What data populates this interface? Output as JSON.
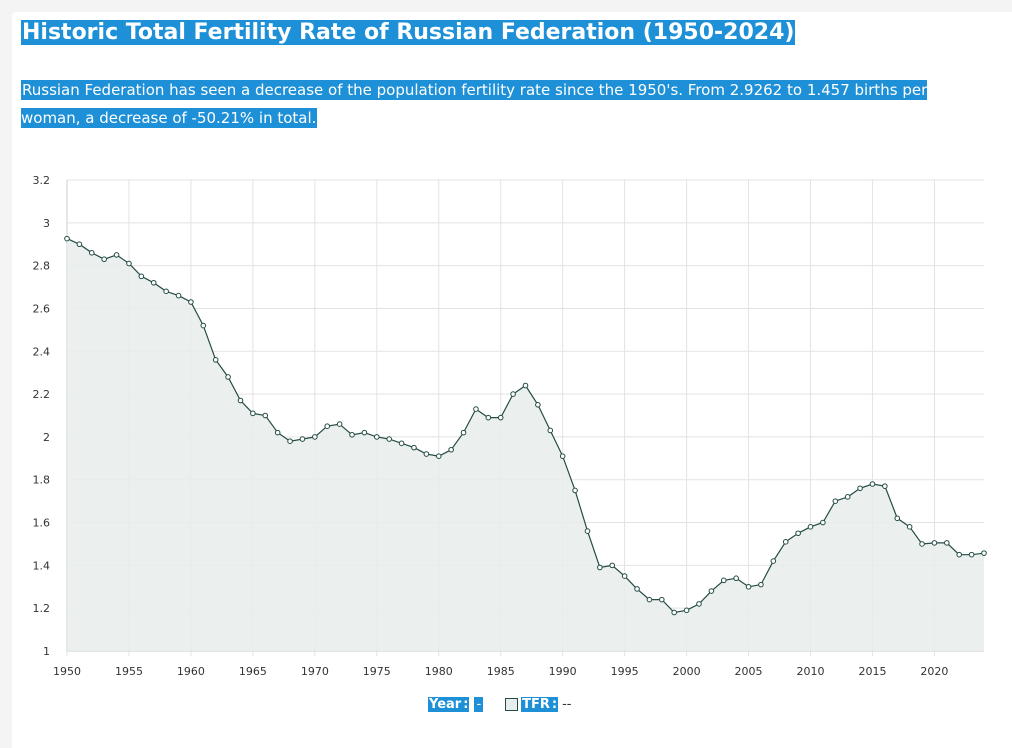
{
  "header": {
    "title": "Historic Total Fertility Rate of Russian Federation (1950-2024)",
    "description": "Russian Federation has seen a decrease of the population fertility rate since the 1950's. From 2.9262 to 1.457 births per woman, a decrease of -50.21% in total."
  },
  "legend": {
    "year_label": "Year",
    "year_sep": ":",
    "year_value": "-",
    "tfr_label": "TFR",
    "tfr_sep": ":",
    "tfr_value": "--"
  },
  "chart_data": {
    "type": "area",
    "title": "Historic Total Fertility Rate of Russian Federation (1950-2024)",
    "xlabel": "",
    "ylabel": "",
    "xlim": [
      1950,
      2024
    ],
    "ylim": [
      1,
      3.2
    ],
    "x_ticks": [
      1950,
      1955,
      1960,
      1965,
      1970,
      1975,
      1980,
      1985,
      1990,
      1995,
      2000,
      2005,
      2010,
      2015,
      2020
    ],
    "y_ticks": [
      1,
      1.2,
      1.4,
      1.6,
      1.8,
      2,
      2.2,
      2.4,
      2.6,
      2.8,
      3,
      3.2
    ],
    "grid": true,
    "line_color": "#244b45",
    "fill_color": "#e7edec",
    "series": [
      {
        "name": "TFR",
        "x": [
          1950,
          1951,
          1952,
          1953,
          1954,
          1955,
          1956,
          1957,
          1958,
          1959,
          1960,
          1961,
          1962,
          1963,
          1964,
          1965,
          1966,
          1967,
          1968,
          1969,
          1970,
          1971,
          1972,
          1973,
          1974,
          1975,
          1976,
          1977,
          1978,
          1979,
          1980,
          1981,
          1982,
          1983,
          1984,
          1985,
          1986,
          1987,
          1988,
          1989,
          1990,
          1991,
          1992,
          1993,
          1994,
          1995,
          1996,
          1997,
          1998,
          1999,
          2000,
          2001,
          2002,
          2003,
          2004,
          2005,
          2006,
          2007,
          2008,
          2009,
          2010,
          2011,
          2012,
          2013,
          2014,
          2015,
          2016,
          2017,
          2018,
          2019,
          2020,
          2021,
          2022,
          2023,
          2024
        ],
        "values": [
          2.9262,
          2.9,
          2.86,
          2.83,
          2.85,
          2.81,
          2.75,
          2.72,
          2.68,
          2.66,
          2.63,
          2.52,
          2.36,
          2.28,
          2.17,
          2.11,
          2.1,
          2.02,
          1.98,
          1.99,
          2.0,
          2.05,
          2.06,
          2.01,
          2.02,
          2.0,
          1.99,
          1.97,
          1.95,
          1.92,
          1.91,
          1.94,
          2.02,
          2.13,
          2.09,
          2.09,
          2.2,
          2.24,
          2.15,
          2.03,
          1.91,
          1.75,
          1.56,
          1.39,
          1.4,
          1.35,
          1.29,
          1.24,
          1.24,
          1.18,
          1.19,
          1.22,
          1.28,
          1.33,
          1.34,
          1.3,
          1.31,
          1.42,
          1.51,
          1.55,
          1.58,
          1.6,
          1.7,
          1.72,
          1.76,
          1.78,
          1.77,
          1.62,
          1.58,
          1.5,
          1.505,
          1.505,
          1.45,
          1.45,
          1.457
        ]
      }
    ]
  }
}
